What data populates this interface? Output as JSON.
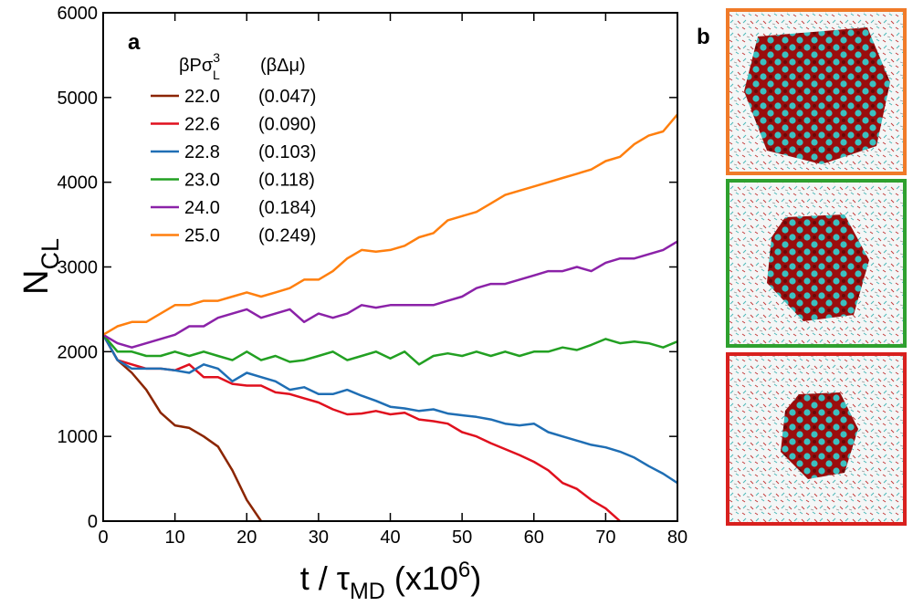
{
  "chart_data": {
    "type": "line",
    "panel_labels": [
      "a",
      "b"
    ],
    "y_label": {
      "main": "N",
      "sub": "CL"
    },
    "x_label": {
      "main": "t / τ",
      "sub": "MD",
      "rest": " (x10",
      "sup": "6",
      "end": ")"
    },
    "legend_header": {
      "main": "βPσ",
      "sup": "3",
      "sub": "L",
      "second": "(βΔμ)"
    },
    "xlim": [
      0,
      80
    ],
    "xticks": [
      0,
      10,
      20,
      30,
      40,
      50,
      60,
      70,
      80
    ],
    "ylim": [
      0,
      6000
    ],
    "yticks": [
      0,
      1000,
      2000,
      3000,
      4000,
      5000,
      6000
    ],
    "x": [
      0,
      2,
      4,
      6,
      8,
      10,
      12,
      14,
      16,
      18,
      20,
      22,
      24,
      26,
      28,
      30,
      32,
      34,
      36,
      38,
      40,
      42,
      44,
      46,
      48,
      50,
      52,
      54,
      56,
      58,
      60,
      62,
      64,
      66,
      68,
      70,
      72,
      74,
      76,
      78,
      80
    ],
    "series": [
      {
        "name": "22.0",
        "dmu": "(0.047)",
        "color": "#8b2500",
        "values": [
          2200,
          1900,
          1750,
          1550,
          1280,
          1130,
          1100,
          1000,
          880,
          600,
          250,
          0,
          null,
          null,
          null,
          null,
          null,
          null,
          null,
          null,
          null,
          null,
          null,
          null,
          null,
          null,
          null,
          null,
          null,
          null,
          null,
          null,
          null,
          null,
          null,
          null,
          null,
          null,
          null,
          null,
          null
        ]
      },
      {
        "name": "22.6",
        "dmu": "(0.090)",
        "color": "#e0101e",
        "values": [
          2200,
          1900,
          1850,
          1800,
          1800,
          1780,
          1850,
          1700,
          1700,
          1620,
          1600,
          1600,
          1520,
          1500,
          1450,
          1400,
          1320,
          1260,
          1270,
          1300,
          1260,
          1280,
          1200,
          1180,
          1150,
          1050,
          1000,
          920,
          850,
          780,
          700,
          600,
          450,
          380,
          250,
          150,
          0,
          null,
          null,
          null,
          null
        ]
      },
      {
        "name": "22.8",
        "dmu": "(0.103)",
        "color": "#1f6eb4",
        "values": [
          2200,
          1900,
          1800,
          1800,
          1800,
          1780,
          1750,
          1850,
          1800,
          1650,
          1750,
          1700,
          1650,
          1550,
          1580,
          1500,
          1500,
          1550,
          1480,
          1420,
          1350,
          1330,
          1300,
          1320,
          1270,
          1250,
          1230,
          1200,
          1150,
          1130,
          1150,
          1050,
          1000,
          950,
          900,
          870,
          820,
          750,
          650,
          560,
          450
        ]
      },
      {
        "name": "23.0",
        "dmu": "(0.118)",
        "color": "#22a022",
        "values": [
          2200,
          2000,
          2000,
          1950,
          1950,
          2000,
          1950,
          2000,
          1950,
          1900,
          2000,
          1900,
          1950,
          1880,
          1900,
          1950,
          2000,
          1900,
          1950,
          2000,
          1920,
          2000,
          1850,
          1950,
          1980,
          1950,
          2000,
          1950,
          2000,
          1950,
          2000,
          2000,
          2050,
          2020,
          2080,
          2150,
          2100,
          2120,
          2100,
          2050,
          2120
        ]
      },
      {
        "name": "24.0",
        "dmu": "(0.184)",
        "color": "#8b22a8",
        "values": [
          2200,
          2100,
          2050,
          2100,
          2150,
          2200,
          2300,
          2300,
          2400,
          2450,
          2500,
          2400,
          2450,
          2500,
          2350,
          2450,
          2400,
          2450,
          2550,
          2520,
          2550,
          2550,
          2550,
          2550,
          2600,
          2650,
          2750,
          2800,
          2800,
          2850,
          2900,
          2950,
          2950,
          3000,
          2950,
          3050,
          3100,
          3100,
          3150,
          3200,
          3300
        ]
      },
      {
        "name": "25.0",
        "dmu": "(0.249)",
        "color": "#ff7f0e",
        "values": [
          2200,
          2300,
          2350,
          2350,
          2450,
          2550,
          2550,
          2600,
          2600,
          2650,
          2700,
          2650,
          2700,
          2750,
          2850,
          2850,
          2950,
          3100,
          3200,
          3180,
          3200,
          3250,
          3350,
          3400,
          3550,
          3600,
          3650,
          3750,
          3850,
          3900,
          3950,
          4000,
          4050,
          4100,
          4150,
          4250,
          4300,
          4450,
          4550,
          4600,
          4800
        ]
      }
    ]
  }
}
